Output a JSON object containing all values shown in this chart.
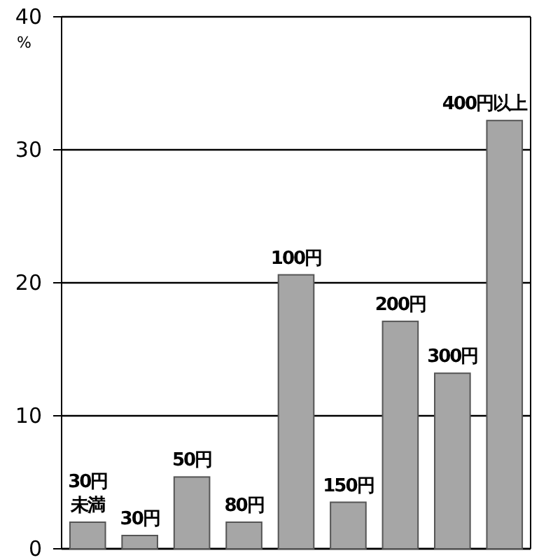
{
  "chart_data": {
    "type": "bar",
    "ylabel": "%",
    "categories": [
      "30円未満",
      "30円",
      "50円",
      "80円",
      "100円",
      "150円",
      "200円",
      "300円",
      "400円以上"
    ],
    "values": [
      2.0,
      1.0,
      5.4,
      2.0,
      20.6,
      3.5,
      17.1,
      13.2,
      32.2
    ],
    "color": "#a6a6a6",
    "ylim": [
      0,
      40
    ],
    "yticks": [
      0,
      10,
      20,
      30,
      40
    ],
    "grid": "y"
  }
}
